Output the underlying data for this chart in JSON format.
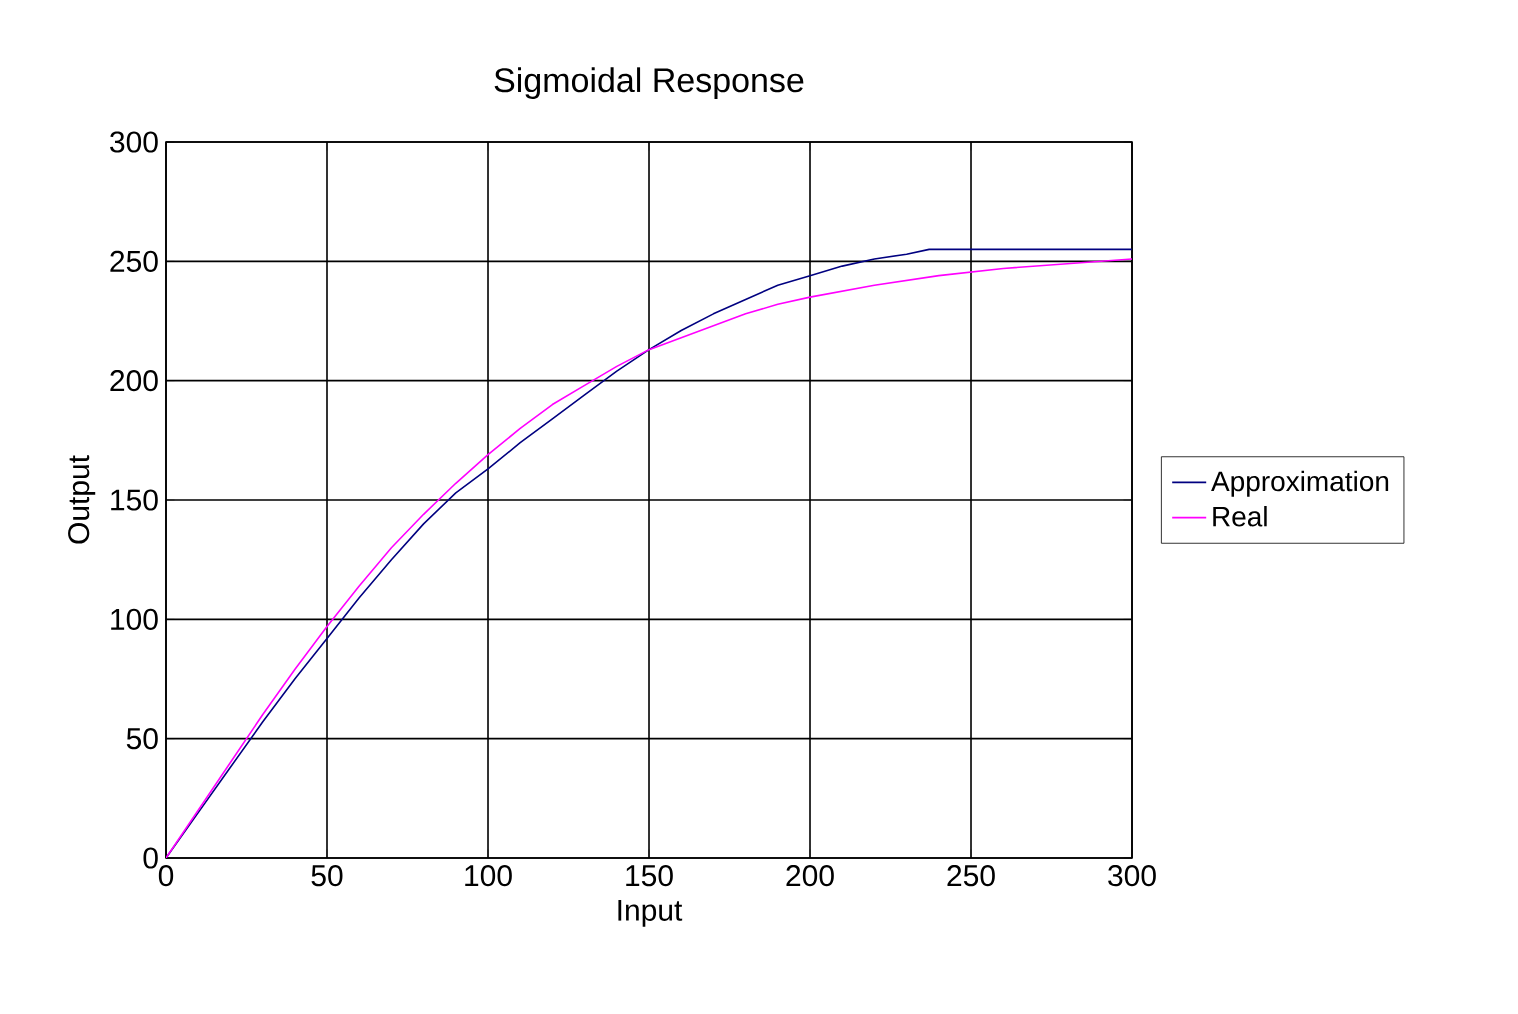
{
  "chart_data": {
    "type": "line",
    "title": "Sigmoidal Response",
    "xlabel": "Input",
    "ylabel": "Output",
    "xlim": [
      0,
      300
    ],
    "ylim": [
      0,
      300
    ],
    "xticks": [
      0,
      50,
      100,
      150,
      200,
      250,
      300
    ],
    "yticks": [
      0,
      50,
      100,
      150,
      200,
      250,
      300
    ],
    "grid": true,
    "legend": "right",
    "marker": "none",
    "line_style": "solid",
    "series": [
      {
        "name": "Approximation",
        "color": "#000080",
        "x": [
          0,
          10,
          20,
          30,
          40,
          50,
          60,
          70,
          80,
          90,
          100,
          110,
          120,
          130,
          140,
          150,
          160,
          170,
          180,
          190,
          200,
          210,
          220,
          230,
          237,
          300
        ],
        "values": [
          0,
          19,
          38,
          57,
          75,
          92,
          109,
          125,
          140,
          153,
          163,
          174,
          184,
          194,
          204,
          213,
          221,
          228,
          234,
          240,
          244,
          248,
          251,
          253,
          255,
          255
        ]
      },
      {
        "name": "Real",
        "color": "#ff00ff",
        "x": [
          0,
          10,
          20,
          30,
          40,
          50,
          60,
          70,
          80,
          90,
          100,
          110,
          120,
          130,
          140,
          150,
          160,
          170,
          180,
          190,
          200,
          220,
          240,
          260,
          280,
          300
        ],
        "values": [
          0,
          20,
          40,
          60,
          79,
          97,
          114,
          130,
          144,
          157,
          169,
          180,
          190,
          198,
          206,
          213,
          218,
          223,
          228,
          232,
          235,
          240,
          244,
          247,
          249,
          251
        ]
      }
    ]
  }
}
